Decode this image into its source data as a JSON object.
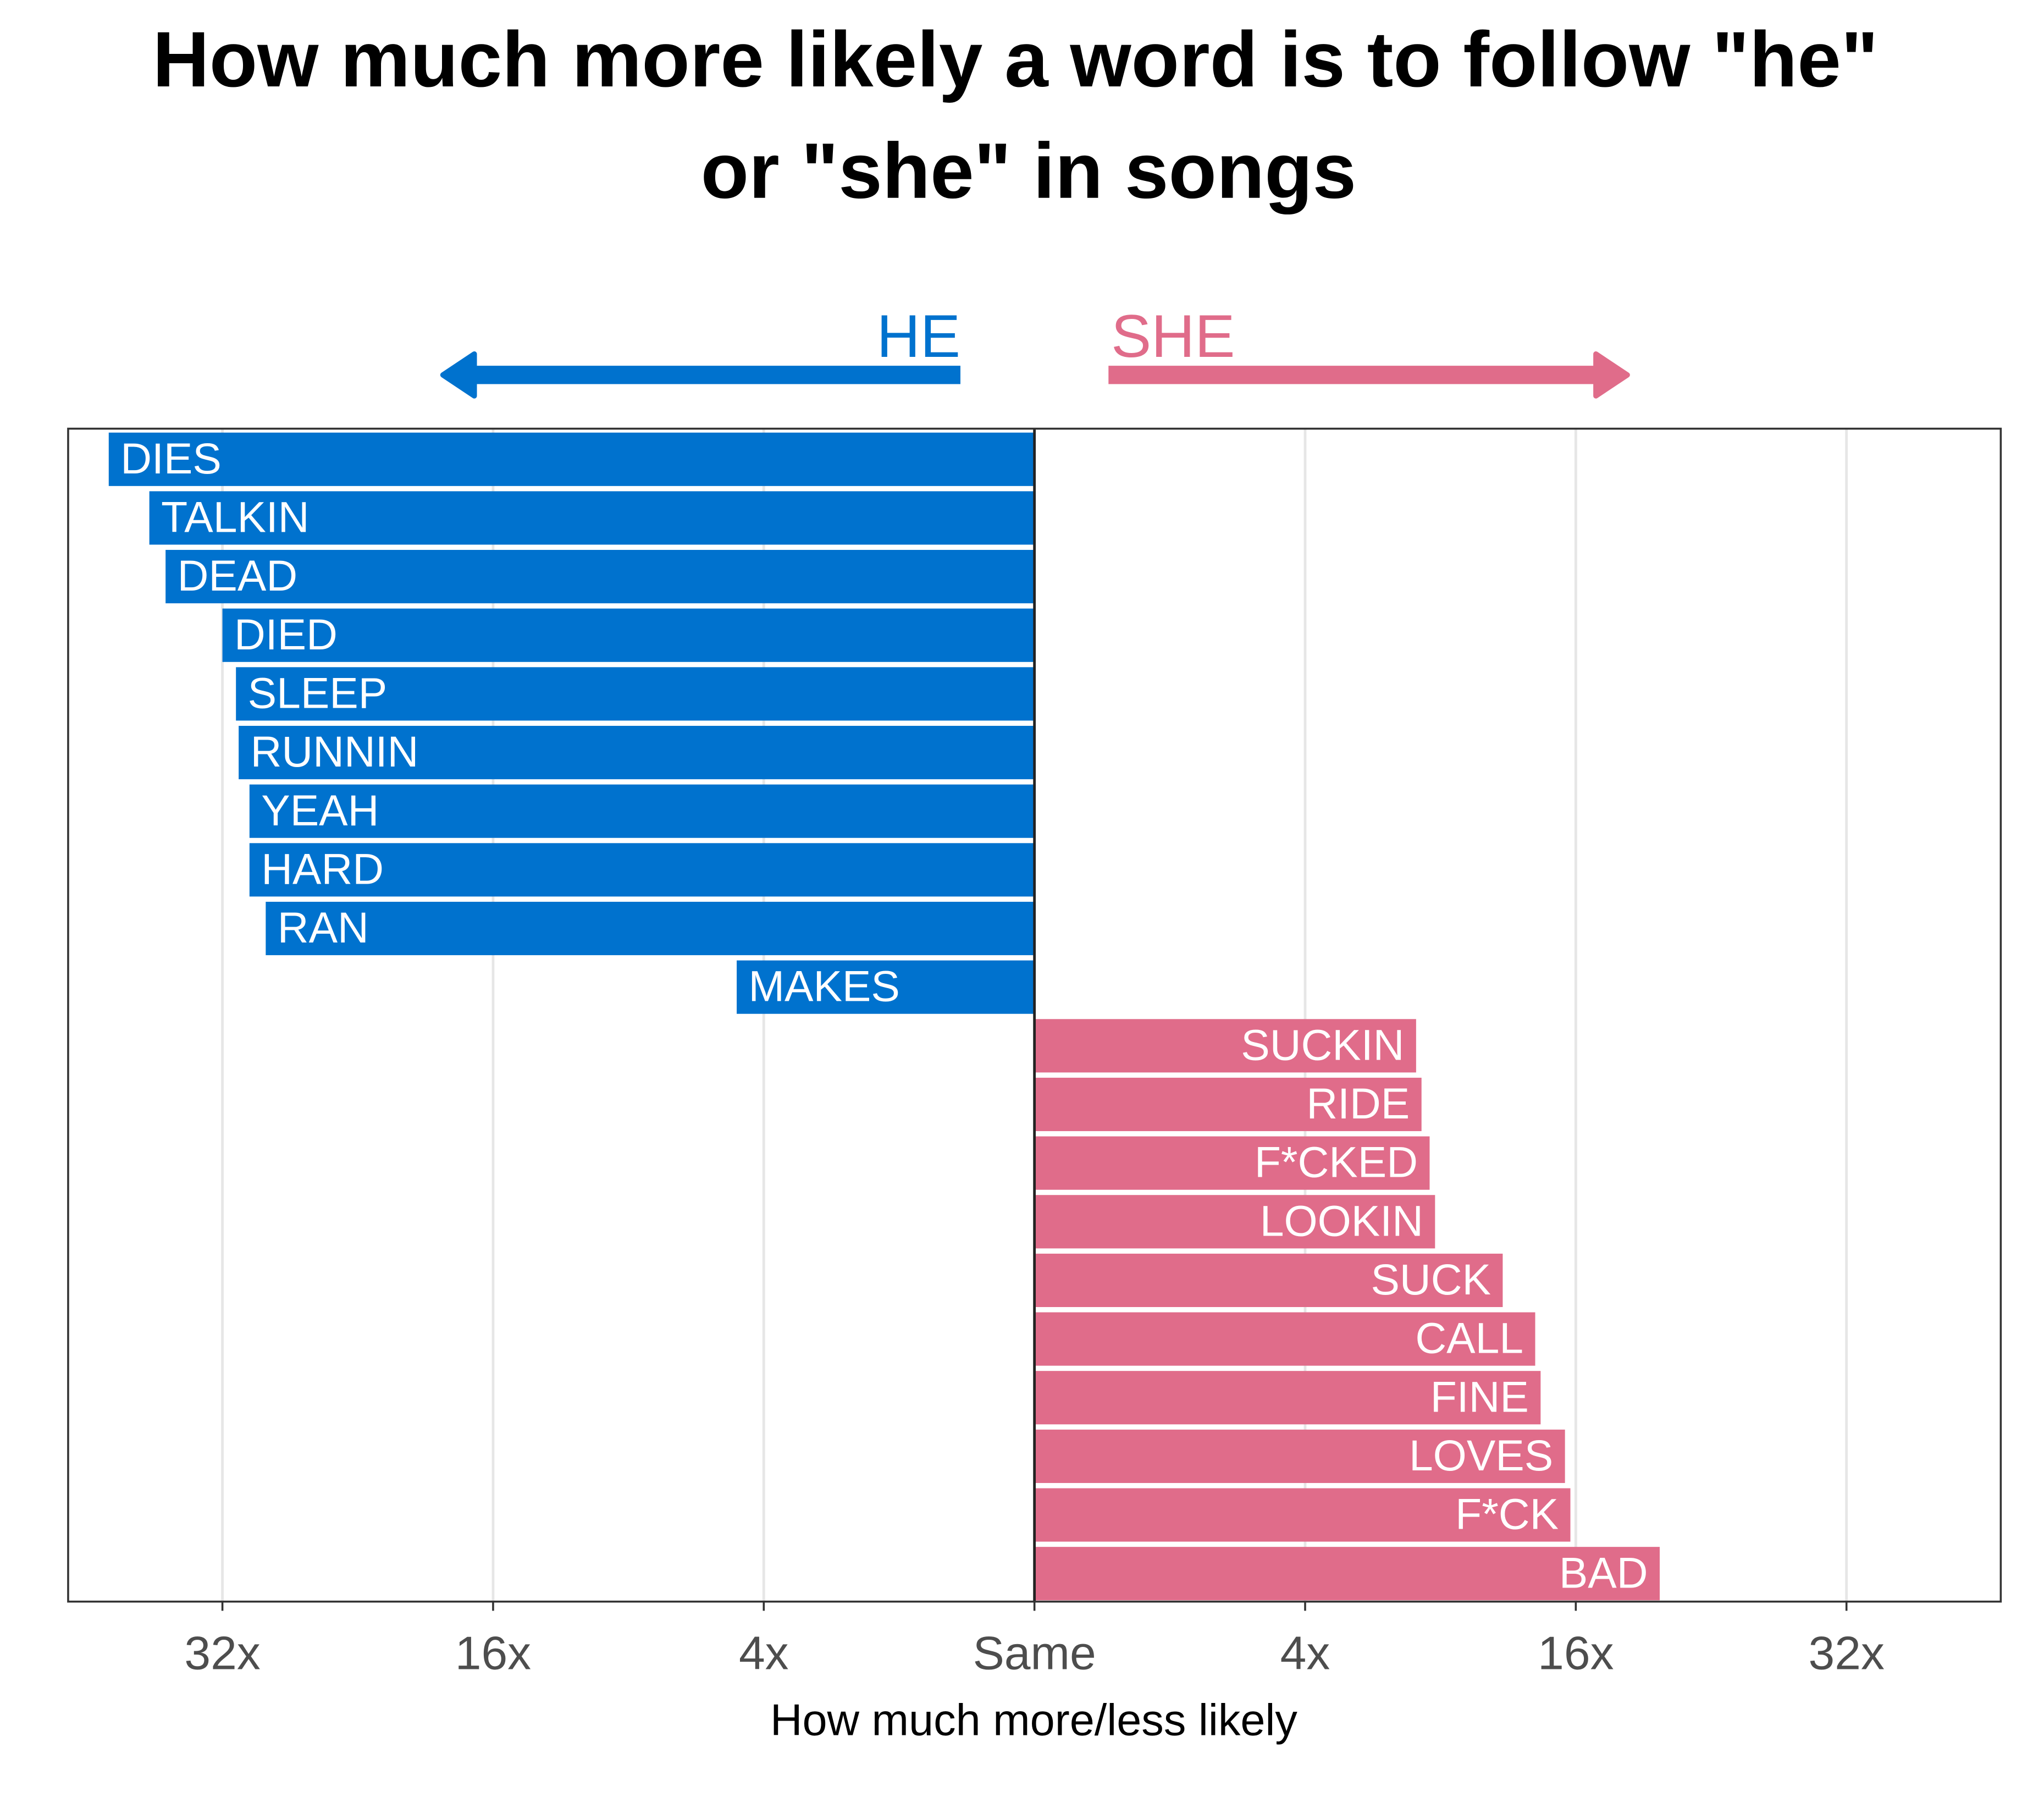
{
  "chart_data": {
    "type": "diverging-bar",
    "title": [
      "How much more likely a word is to follow \"he\"",
      "or \"she\" in songs"
    ],
    "x_label": "How much more/less likely",
    "categories": [
      "DIES",
      "TALKIN",
      "DEAD",
      "DIED",
      "SLEEP",
      "RUNNIN",
      "YEAH",
      "HARD",
      "RAN",
      "MAKES",
      "SUCKIN",
      "RIDE",
      "F*CKED",
      "LOOKIN",
      "SUCK",
      "CALL",
      "FINE",
      "LOVES",
      "F*CK",
      "BAD"
    ],
    "series": [
      {
        "name": "HE",
        "color": "#0072ce",
        "values": [
          -3.42,
          -3.27,
          -3.21,
          -3.0,
          -2.95,
          -2.94,
          -2.9,
          -2.9,
          -2.84,
          -1.1,
          null,
          null,
          null,
          null,
          null,
          null,
          null,
          null,
          null,
          null
        ]
      },
      {
        "name": "SHE",
        "color": "#e06c8a",
        "values": [
          null,
          null,
          null,
          null,
          null,
          null,
          null,
          null,
          null,
          null,
          1.41,
          1.43,
          1.46,
          1.48,
          1.73,
          1.85,
          1.87,
          1.96,
          1.98,
          2.31
        ]
      }
    ],
    "xlim": [
      -3.57,
      3.57
    ],
    "xticks": [
      {
        "value": -3,
        "label": "32x"
      },
      {
        "value": -2,
        "label": "16x"
      },
      {
        "value": -1,
        "label": "4x"
      },
      {
        "value": 0,
        "label": "Same"
      },
      {
        "value": 1,
        "label": "4x"
      },
      {
        "value": 2,
        "label": "16x"
      },
      {
        "value": 3,
        "label": "32x"
      }
    ],
    "grid": true
  }
}
